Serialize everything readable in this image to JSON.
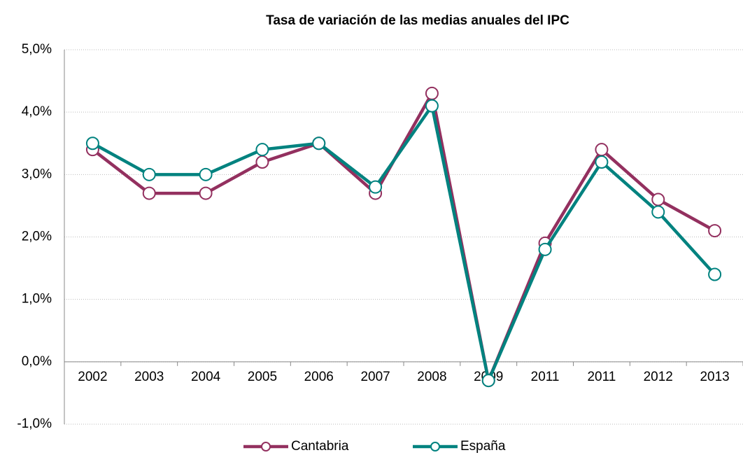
{
  "chart_data": {
    "type": "line",
    "title": "Tasa de variación de las medias anuales del IPC",
    "categories": [
      "2002",
      "2003",
      "2004",
      "2005",
      "2006",
      "2007",
      "2008",
      "2009",
      "2011",
      "2011",
      "2012",
      "2013"
    ],
    "series": [
      {
        "name": "Cantabria",
        "color": "#93305f",
        "values": [
          3.4,
          2.7,
          2.7,
          3.2,
          3.5,
          2.7,
          4.3,
          -0.3,
          1.9,
          3.4,
          2.6,
          2.1
        ]
      },
      {
        "name": "España",
        "color": "#00827f",
        "values": [
          3.5,
          3.0,
          3.0,
          3.4,
          3.5,
          2.8,
          4.1,
          -0.3,
          1.8,
          3.2,
          2.4,
          1.4
        ]
      }
    ],
    "ylim": [
      -1,
      5
    ],
    "yticks": [
      {
        "value": -1,
        "label": "-1,0%"
      },
      {
        "value": 0,
        "label": "0,0%"
      },
      {
        "value": 1,
        "label": "1,0%"
      },
      {
        "value": 2,
        "label": "2,0%"
      },
      {
        "value": 3,
        "label": "3,0%"
      },
      {
        "value": 4,
        "label": "4,0%"
      },
      {
        "value": 5,
        "label": "5,0%"
      }
    ],
    "grid": true,
    "legend": "bottom"
  }
}
